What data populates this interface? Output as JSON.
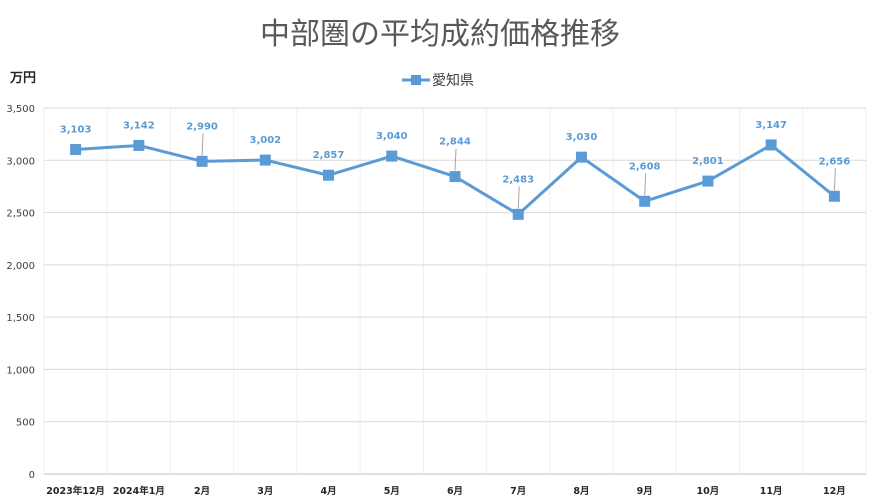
{
  "chart_data": {
    "type": "line",
    "title": "中部圏の平均成約価格推移",
    "ylabel": "万円",
    "xlabel": "",
    "ylim": [
      0,
      3500
    ],
    "yticks": [
      0,
      500,
      1000,
      1500,
      2000,
      2500,
      3000,
      3500
    ],
    "ytick_labels": [
      "0",
      "500",
      "1,000",
      "1,500",
      "2,000",
      "2,500",
      "3,000",
      "3,500"
    ],
    "categories": [
      "2023年12月",
      "2024年1月",
      "2月",
      "3月",
      "4月",
      "5月",
      "6月",
      "7月",
      "8月",
      "9月",
      "10月",
      "11月",
      "12月"
    ],
    "grid": true,
    "legend_position": "top-center",
    "series": [
      {
        "name": "愛知県",
        "color": "#5b9bd5",
        "values": [
          3103,
          3142,
          2990,
          3002,
          2857,
          3040,
          2844,
          2483,
          3030,
          2608,
          2801,
          3147,
          2656
        ],
        "labels": [
          "3,103",
          "3,142",
          "2,990",
          "3,002",
          "2,857",
          "3,040",
          "2,844",
          "2,483",
          "3,030",
          "2,608",
          "2,801",
          "3,147",
          "2,656"
        ]
      }
    ]
  }
}
